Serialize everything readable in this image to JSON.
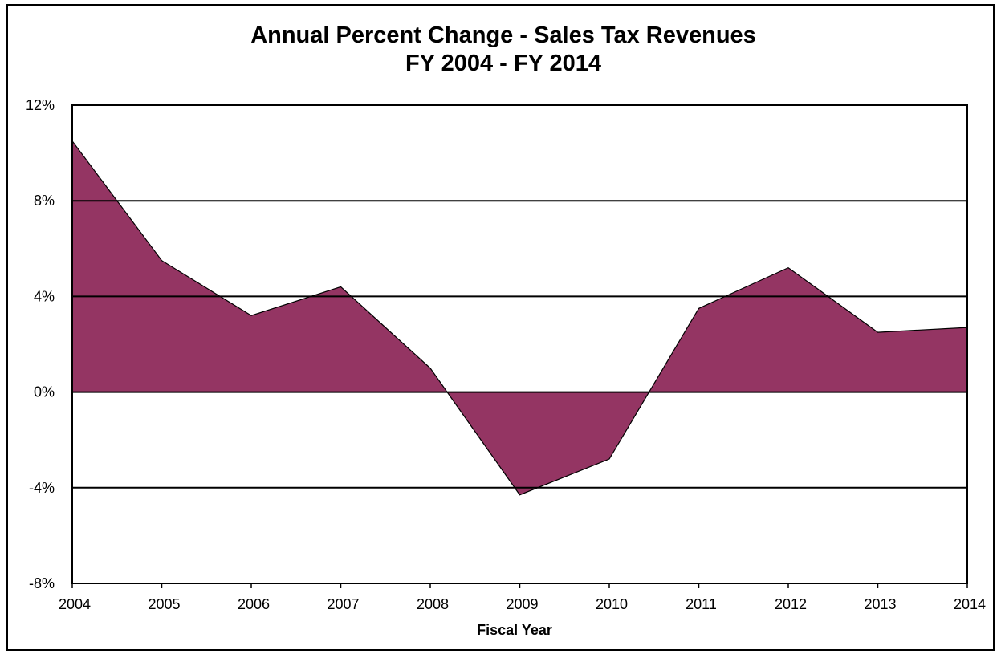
{
  "chart_data": {
    "type": "area",
    "title": "Annual Percent Change - Sales Tax Revenues",
    "subtitle": "FY 2004 - FY 2014",
    "xlabel": "Fiscal Year",
    "ylabel": "",
    "x": [
      "2004",
      "2005",
      "2006",
      "2007",
      "2008",
      "2009",
      "2010",
      "2011",
      "2012",
      "2013",
      "2014"
    ],
    "series": [
      {
        "values": [
          10.5,
          5.5,
          3.2,
          4.4,
          1.0,
          -4.3,
          -2.8,
          3.5,
          5.2,
          2.5,
          2.7
        ]
      }
    ],
    "ylim": [
      -8,
      12
    ],
    "yticks": [
      -8,
      -4,
      0,
      4,
      8,
      12
    ],
    "ytick_labels": [
      "-8%",
      "-4%",
      "0%",
      "4%",
      "8%",
      "12%"
    ],
    "grid": "horizontal",
    "legend": "none",
    "colors": {
      "area_fill": "#943563",
      "outline": "#000000",
      "gridline": "#000000"
    }
  }
}
